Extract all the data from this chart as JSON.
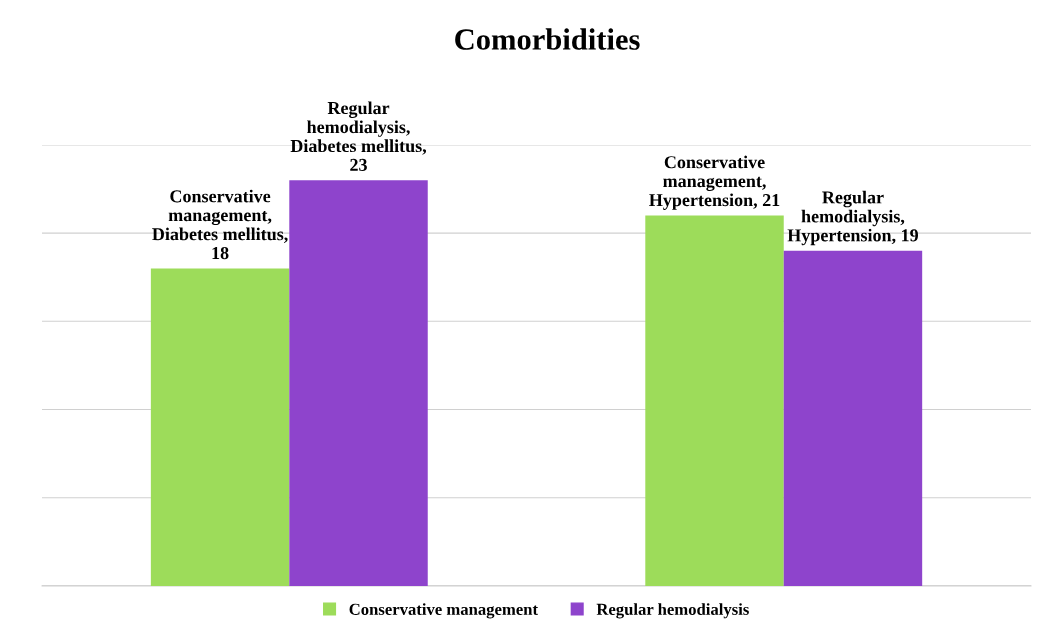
{
  "chart_data": {
    "type": "bar",
    "title": "Comorbidities",
    "categories": [
      null,
      null
    ],
    "series": [
      {
        "name": "Conservative management",
        "color": "#9ddc5a",
        "values": [
          18,
          21
        ],
        "value_labels": [
          "Conservative management, Diabetes mellitus, 18",
          "Conservative management, Hypertension, 21"
        ]
      },
      {
        "name": "Regular hemodialysis",
        "color": "#8e44cc",
        "values": [
          23,
          19
        ],
        "value_labels": [
          "Regular hemodialysis, Diabetes mellitus, 23",
          "Regular hemodialysis, Hypertension, 19"
        ]
      }
    ],
    "ylim": [
      0,
      25
    ],
    "yticks": [
      {
        "value": 0,
        "label": null
      },
      {
        "value": 5,
        "label": null
      },
      {
        "value": 10,
        "label": null
      },
      {
        "value": 15,
        "label": null
      },
      {
        "value": 20,
        "label": null
      },
      {
        "value": 25,
        "label": null
      }
    ],
    "grid": "y",
    "legend": "bottom"
  }
}
